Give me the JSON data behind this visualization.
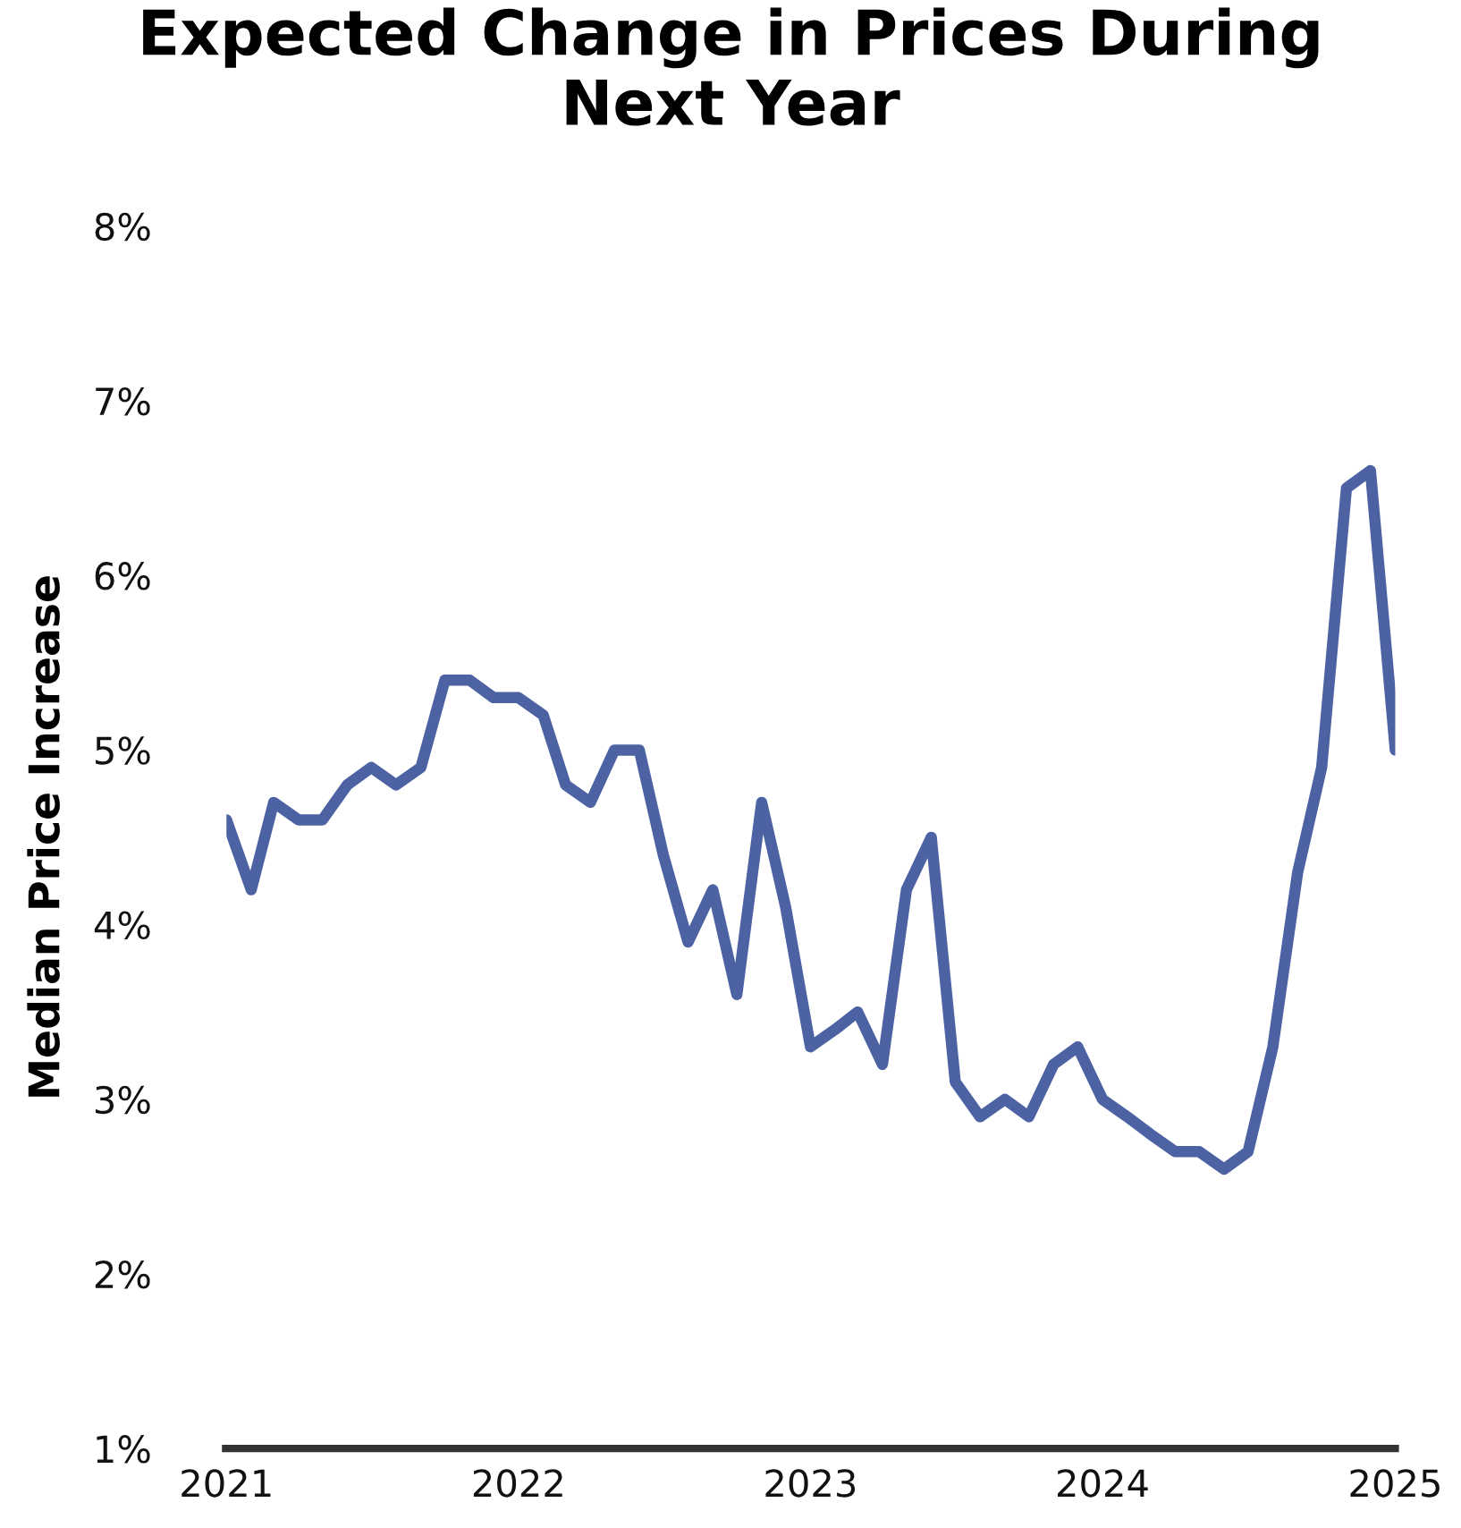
{
  "chart_data": {
    "type": "line",
    "title": "Expected Change in Prices During\nNext Year",
    "ylabel": "Median Price Increase",
    "x": [
      "2021-01",
      "2021-02",
      "2021-03",
      "2021-04",
      "2021-05",
      "2021-06",
      "2021-07",
      "2021-08",
      "2021-09",
      "2021-10",
      "2021-11",
      "2021-12",
      "2022-01",
      "2022-02",
      "2022-03",
      "2022-04",
      "2022-05",
      "2022-06",
      "2022-07",
      "2022-08",
      "2022-09",
      "2022-10",
      "2022-11",
      "2022-12",
      "2023-01",
      "2023-02",
      "2023-03",
      "2023-04",
      "2023-05",
      "2023-06",
      "2023-07",
      "2023-08",
      "2023-09",
      "2023-10",
      "2023-11",
      "2023-12",
      "2024-01",
      "2024-02",
      "2024-03",
      "2024-04",
      "2024-05",
      "2024-06",
      "2024-07",
      "2024-08",
      "2024-09",
      "2024-10",
      "2024-11",
      "2024-12",
      "2025-01"
    ],
    "series": [
      {
        "color": "#4c62a3",
        "values": [
          4.6,
          4.2,
          4.7,
          4.6,
          4.6,
          4.8,
          4.9,
          4.8,
          4.9,
          5.4,
          5.4,
          5.3,
          5.3,
          5.2,
          4.8,
          4.7,
          5.0,
          5.0,
          4.4,
          3.9,
          4.2,
          3.6,
          4.7,
          4.1,
          3.3,
          3.4,
          3.5,
          3.2,
          4.2,
          4.5,
          3.1,
          2.9,
          3.0,
          2.9,
          3.2,
          3.3,
          3.0,
          2.9,
          2.8,
          2.7,
          2.7,
          2.6,
          2.7,
          3.3,
          4.3,
          4.9,
          6.5,
          6.6,
          5.0
        ]
      }
    ],
    "xlim": [
      "2021-01",
      "2025-01"
    ],
    "xticks": [
      {
        "value": "2021-01",
        "label": "2021"
      },
      {
        "value": "2022-01",
        "label": "2022"
      },
      {
        "value": "2023-01",
        "label": "2023"
      },
      {
        "value": "2024-01",
        "label": "2024"
      },
      {
        "value": "2025-01",
        "label": "2025"
      }
    ],
    "ylim": [
      1,
      8
    ],
    "yticks": [
      {
        "value": 1,
        "label": "1%"
      },
      {
        "value": 2,
        "label": "2%"
      },
      {
        "value": 3,
        "label": "3%"
      },
      {
        "value": 4,
        "label": "4%"
      },
      {
        "value": 5,
        "label": "5%"
      },
      {
        "value": 6,
        "label": "6%"
      },
      {
        "value": 7,
        "label": "7%"
      },
      {
        "value": 8,
        "label": "8%"
      }
    ],
    "grid": false,
    "legend": false,
    "marker": "none",
    "line_style": "solid"
  }
}
